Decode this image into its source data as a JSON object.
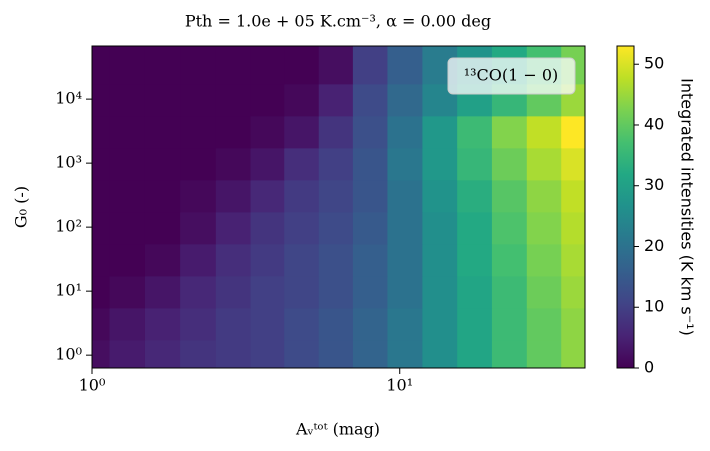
{
  "chart_data": {
    "type": "heatmap",
    "title": "Pth = 1.0e + 05 K.cm⁻³, α = 0.00 deg",
    "xlabel": "Aᵥᵗᵒᵗ (mag)",
    "ylabel": "G₀ (-)",
    "annotation": "¹³CO(1 − 0)",
    "colorbar_label": "Integrated intensities (K km s⁻¹)",
    "colormap": "viridis",
    "xscale": "log",
    "yscale": "log",
    "x": [
      1,
      1.3,
      1.7,
      2.2,
      2.9,
      3.7,
      4.8,
      6.2,
      8,
      10.4,
      13.5,
      17.5,
      22.7,
      29.5,
      38
    ],
    "y": [
      1,
      3,
      10,
      30,
      100,
      300,
      1000,
      3000,
      10000,
      30000
    ],
    "z": [
      [
        2,
        4,
        6,
        8,
        9,
        10,
        12,
        14,
        17,
        21,
        26,
        31,
        36,
        40,
        44
      ],
      [
        1,
        3,
        5,
        7,
        9,
        10,
        12,
        14,
        17,
        21,
        26,
        31,
        36,
        40,
        44
      ],
      [
        0,
        1,
        3,
        6,
        8,
        10,
        11,
        13,
        16,
        20,
        26,
        31,
        36,
        41,
        45
      ],
      [
        0,
        0,
        1,
        4,
        7,
        9,
        11,
        13,
        16,
        20,
        26,
        32,
        37,
        42,
        46
      ],
      [
        0,
        0,
        0,
        2,
        5,
        8,
        10,
        12,
        15,
        20,
        26,
        32,
        38,
        43,
        47
      ],
      [
        0,
        0,
        0,
        1,
        3,
        6,
        9,
        11,
        14,
        20,
        27,
        33,
        39,
        44,
        48
      ],
      [
        0,
        0,
        0,
        0,
        1,
        3,
        7,
        10,
        14,
        21,
        28,
        35,
        41,
        46,
        50
      ],
      [
        0,
        0,
        0,
        0,
        0,
        1,
        3,
        8,
        13,
        20,
        28,
        36,
        43,
        48,
        53
      ],
      [
        0,
        0,
        0,
        0,
        0,
        0,
        1,
        5,
        12,
        18,
        24,
        30,
        35,
        40,
        45
      ],
      [
        0,
        0,
        0,
        0,
        0,
        0,
        0,
        2,
        10,
        16,
        22,
        27,
        32,
        37,
        42
      ]
    ],
    "xlim": [
      1,
      40
    ],
    "ylim": [
      0.63,
      67600
    ],
    "xticks": [
      {
        "value": 1,
        "label": "10⁰"
      },
      {
        "value": 10,
        "label": "10¹"
      }
    ],
    "yticks": [
      {
        "value": 1,
        "label": "10⁰"
      },
      {
        "value": 10,
        "label": "10¹"
      },
      {
        "value": 100,
        "label": "10²"
      },
      {
        "value": 1000,
        "label": "10³"
      },
      {
        "value": 10000,
        "label": "10⁴"
      }
    ],
    "clim": [
      0,
      53
    ],
    "cticks": [
      0,
      10,
      20,
      30,
      40,
      50
    ]
  }
}
